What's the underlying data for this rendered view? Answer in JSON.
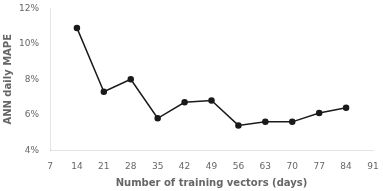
{
  "chart_data": {
    "type": "line",
    "x": [
      14,
      21,
      28,
      35,
      42,
      49,
      56,
      63,
      70,
      77,
      84
    ],
    "values": [
      0.109,
      0.073,
      0.08,
      0.058,
      0.067,
      0.068,
      0.054,
      0.056,
      0.056,
      0.061,
      0.064
    ],
    "xlabel": "Number of training vectors (days)",
    "ylabel": "ANN daily MAPE",
    "xlim": [
      7,
      91
    ],
    "xticks": [
      7,
      14,
      21,
      28,
      35,
      42,
      49,
      56,
      63,
      70,
      77,
      84,
      91
    ],
    "ylim": [
      0.04,
      0.12
    ],
    "yticks": [
      {
        "value": 0.04,
        "label": "4%"
      },
      {
        "value": 0.06,
        "label": "6%"
      },
      {
        "value": 0.08,
        "label": "8%"
      },
      {
        "value": 0.1,
        "label": "10%"
      },
      {
        "value": 0.12,
        "label": "12%"
      }
    ],
    "color": "#1a1a1a",
    "marker": "circle",
    "grid": false
  }
}
